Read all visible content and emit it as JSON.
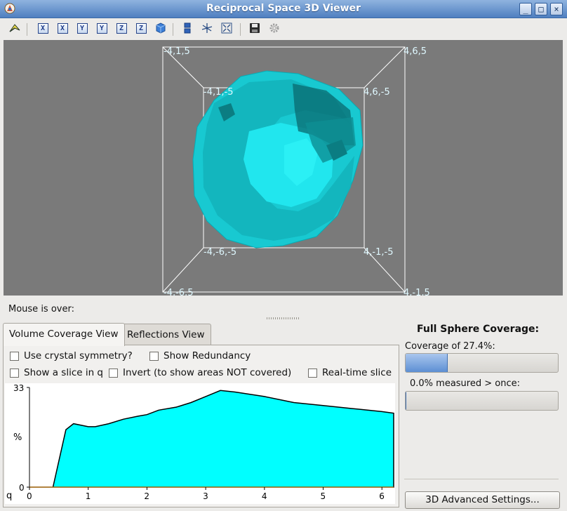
{
  "window": {
    "title": "Reciprocal Space 3D Viewer",
    "controls": {
      "minimize": "_",
      "maximize": "□",
      "close": "×"
    }
  },
  "toolbar": {
    "buttons": [
      {
        "icon": "select-arrow-icon"
      },
      {
        "icon": "view-along-x-icon",
        "label": "X"
      },
      {
        "icon": "view-along-neg-x-icon",
        "label": "X"
      },
      {
        "icon": "view-along-y-icon",
        "label": "Y"
      },
      {
        "icon": "view-along-neg-y-icon",
        "label": "Y"
      },
      {
        "icon": "view-along-z-icon",
        "label": "Z"
      },
      {
        "icon": "view-along-neg-z-icon",
        "label": "Z"
      },
      {
        "icon": "cube-icon"
      },
      {
        "icon": "stack-icon"
      },
      {
        "icon": "star-axes-icon"
      },
      {
        "icon": "zoom-fit-icon"
      },
      {
        "icon": "save-icon"
      },
      {
        "icon": "gear-icon"
      }
    ]
  },
  "view3d": {
    "background": "#7a7a7a",
    "volume_color": "#00e0e6",
    "corner_labels": {
      "back_top_left": "-4,1,5",
      "back_top_right": "4,6,5",
      "front_top_left": "-4,1,-5",
      "front_top_right": "4,6,-5",
      "front_bottom_left": "-4,-6,-5",
      "front_bottom_right": "4,-1,-5",
      "back_bottom_left": "-4,-6,5",
      "back_bottom_right": "4,-1,5"
    }
  },
  "status": {
    "mouse_over": "Mouse is over:"
  },
  "tabs": [
    {
      "label": "Volume Coverage View",
      "active": true
    },
    {
      "label": "Reflections View",
      "active": false
    }
  ],
  "options": {
    "use_crystal_symmetry": "Use crystal symmetry?",
    "show_redundancy": "Show Redundancy",
    "show_slice": "Show a slice in q",
    "invert": "Invert (to show areas NOT covered)",
    "realtime_slice": "Real-time slice"
  },
  "chart_data": {
    "type": "area",
    "xlabel": "q",
    "ylabel": "%",
    "xlim": [
      0,
      6.2
    ],
    "ylim": [
      0,
      33
    ],
    "xticks": [
      "0",
      "1",
      "2",
      "3",
      "4",
      "5",
      "6"
    ],
    "yticks": [
      "0",
      "33"
    ],
    "fill_color": "#00ffff",
    "x": [
      0.0,
      0.28,
      0.4,
      0.62,
      0.75,
      1.0,
      1.12,
      1.35,
      1.6,
      1.85,
      2.0,
      2.2,
      2.5,
      2.75,
      3.0,
      3.25,
      3.5,
      4.0,
      4.5,
      5.0,
      5.5,
      6.0,
      6.2
    ],
    "y": [
      0,
      0,
      0,
      19,
      21,
      20,
      20,
      21,
      22.5,
      23.5,
      24,
      25.5,
      26.5,
      28,
      30,
      32,
      31.5,
      30,
      28,
      27,
      26,
      25,
      24.5
    ]
  },
  "coverage": {
    "title": "Full Sphere Coverage:",
    "label": "Coverage of  27.4%:",
    "percent": 27.4,
    "redundant_label": "0.0% measured > once:",
    "redundant_percent": 0
  },
  "advanced_button": "3D Advanced Settings..."
}
